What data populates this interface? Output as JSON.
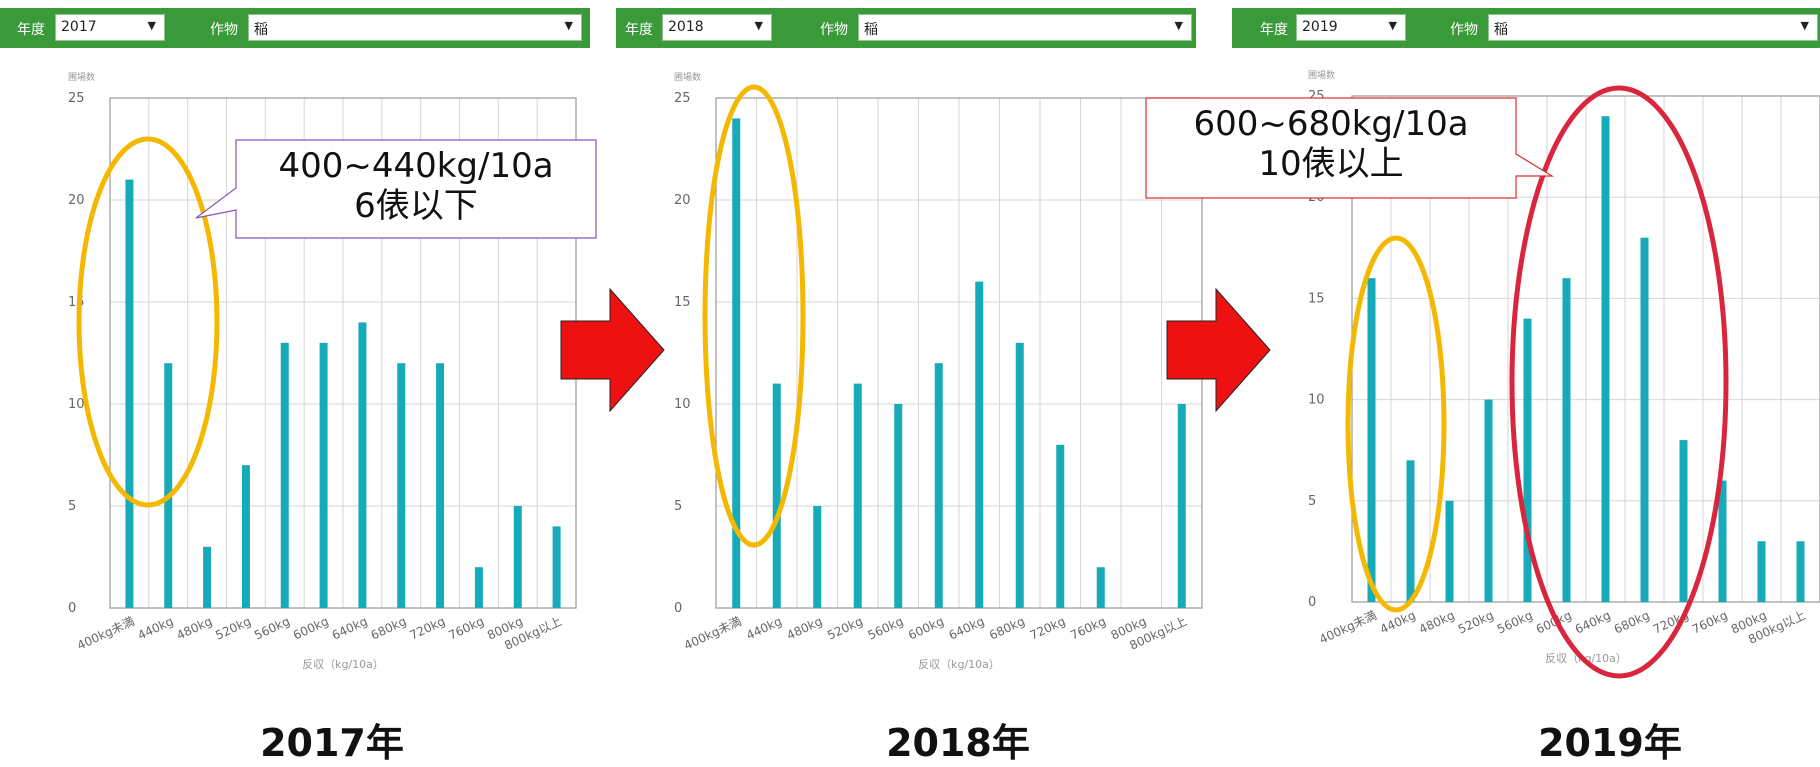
{
  "header": {
    "year_label": "年度",
    "crop_label": "作物",
    "crop_value": "稲"
  },
  "panels": [
    {
      "year_value": "2017",
      "caption": "2017年"
    },
    {
      "year_value": "2018",
      "caption": "2018年"
    },
    {
      "year_value": "2019",
      "caption": "2019年"
    }
  ],
  "callouts": {
    "left": {
      "line1": "400~440kg/10a",
      "line2": "6俵以下"
    },
    "right": {
      "line1": "600~680kg/10a",
      "line2": "10俵以上"
    }
  },
  "colors": {
    "header_green": "#3a9a3a",
    "bar": "#17aab8",
    "highlight_yellow": "#f5b800",
    "highlight_red": "#d9263d",
    "arrow_red": "#ee1111",
    "callout_purple": "#8a55b5",
    "callout_red": "#e03030"
  },
  "icons": {
    "dropdown": "triangle-down-icon",
    "arrow": "right-arrow-icon"
  },
  "chart_data": [
    {
      "type": "bar",
      "year": "2017",
      "ylabel": "圃場数",
      "xlabel": "反収（kg/10a）",
      "ylim": [
        0,
        25
      ],
      "yticks": [
        0,
        5,
        10,
        15,
        20,
        25
      ],
      "grid": true,
      "categories": [
        "400kg未満",
        "440kg",
        "480kg",
        "520kg",
        "560kg",
        "600kg",
        "640kg",
        "680kg",
        "720kg",
        "760kg",
        "800kg",
        "800kg以上"
      ],
      "values": [
        21,
        12,
        3,
        7,
        13,
        13,
        14,
        12,
        12,
        2,
        5,
        4
      ]
    },
    {
      "type": "bar",
      "year": "2018",
      "ylabel": "圃場数",
      "xlabel": "反収（kg/10a）",
      "ylim": [
        0,
        25
      ],
      "yticks": [
        0,
        5,
        10,
        15,
        20,
        25
      ],
      "grid": true,
      "categories": [
        "400kg未満",
        "440kg",
        "480kg",
        "520kg",
        "560kg",
        "600kg",
        "640kg",
        "680kg",
        "720kg",
        "760kg",
        "800kg",
        "800kg以上"
      ],
      "values": [
        24,
        11,
        5,
        11,
        10,
        12,
        16,
        13,
        8,
        2,
        0,
        10
      ]
    },
    {
      "type": "bar",
      "year": "2019",
      "ylabel": "圃場数",
      "xlabel": "反収（kg/10a）",
      "ylim": [
        0,
        25
      ],
      "yticks": [
        0,
        5,
        10,
        15,
        20,
        25
      ],
      "grid": true,
      "categories": [
        "400kg未満",
        "440kg",
        "480kg",
        "520kg",
        "560kg",
        "600kg",
        "640kg",
        "680kg",
        "720kg",
        "760kg",
        "800kg",
        "800kg以上"
      ],
      "values": [
        16,
        7,
        5,
        10,
        14,
        16,
        24,
        18,
        8,
        6,
        3,
        3
      ]
    }
  ]
}
